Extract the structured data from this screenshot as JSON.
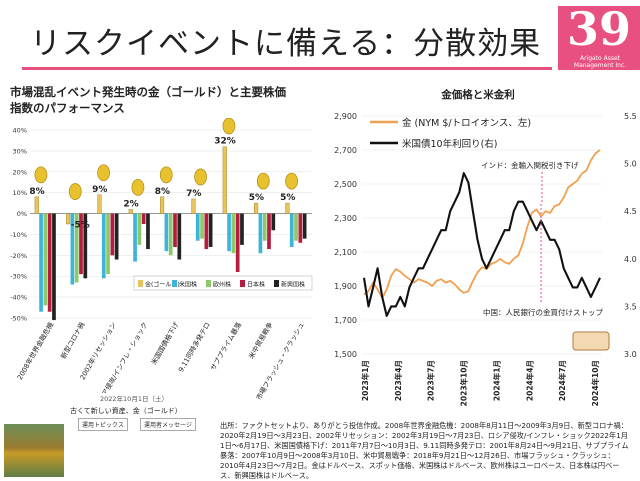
{
  "header": {
    "title": "リスクイベントに備える：分散効果",
    "page_number": "39",
    "publisher_line1": "Arigato Asset",
    "publisher_line2": "Management Inc."
  },
  "left_chart_title_line1": "市場混乱イベント発生時の金（ゴールド）と主要株価",
  "left_chart_title_line2": "指数のパフォーマンス",
  "right_chart_title": "金価格と米金利",
  "thumbnail": {
    "date": "2022年10月1日（土）",
    "title": "古くて新しい資産、金（ゴールド）",
    "button1": "運用トピックス",
    "button2": "運用者メッセージ"
  },
  "source_note": "出所：ファクトセットより、ありがとう投信作成。2008年世界金融危機：2008年8月11日〜2009年3月9日、新型コロナ禍：2020年2月19日〜3月23日、2002年リセッション：2002年3月19日〜7月23日、ロシア侵攻/インフレ・ショック2022年1月1日〜6月17日、米国国債格下げ：2011年7月7日〜10月3日、9.11同時多発テロ：2001年8月24日〜9月21日、サブプライム暴落：2007年10月9日〜2008年3月10日、米中貿易戦争：2018年9月21日〜12月26日、市場フラッシュ・クラッシュ：2010年4月23日〜7月2日。金はドルベース、スポット価格、米国株はドルベース、欧州株はユーロベース、日本株は円ベース、新興国株はドルベース。",
  "chart_data": [
    {
      "type": "bar",
      "title": "市場混乱イベント発生時の金（ゴールド）と主要株価指数のパフォーマンス",
      "categories": [
        "2008年世界金融危機",
        "新型コロナ禍",
        "2002年リセッション",
        "ロシア侵攻/インフレ・ショック",
        "米国国債格下げ",
        "9.11同時多発テロ",
        "サブプライム暴落",
        "米中貿易戦争",
        "市場フラッシュ・クラッシュ"
      ],
      "ylim": [
        -50,
        40
      ],
      "yticks": [
        "40%",
        "30%",
        "20%",
        "10%",
        "0%",
        "-10%",
        "-20%",
        "-30%",
        "-40%",
        "-50%"
      ],
      "series": [
        {
          "name": "金(ゴールド)",
          "color": "#e8c25a",
          "values": [
            8,
            -5,
            9,
            2,
            8,
            7,
            32,
            5,
            5
          ]
        },
        {
          "name": "米国株",
          "color": "#3fb4d8",
          "values": [
            -47,
            -34,
            -31,
            -23,
            -18,
            -13,
            -18,
            -19,
            -16
          ]
        },
        {
          "name": "欧州株",
          "color": "#8dc96b",
          "values": [
            -44,
            -33,
            -29,
            -15,
            -20,
            -12,
            -19,
            -13,
            -13
          ]
        },
        {
          "name": "日本株",
          "color": "#b51d3d",
          "values": [
            -47,
            -29,
            -20,
            -5,
            -16,
            -17,
            -28,
            -17,
            -14
          ]
        },
        {
          "name": "新興国株",
          "color": "#222222",
          "values": [
            -51,
            -31,
            -22,
            -17,
            -22,
            -16,
            -15,
            -8,
            -12
          ]
        }
      ],
      "data_labels": [
        "8%",
        "-5%",
        "9%",
        "2%",
        "8%",
        "7%",
        "32%",
        "5%",
        "5%"
      ]
    },
    {
      "type": "line",
      "title": "金価格と米金利",
      "x_ticks": [
        "2023年1月",
        "2023年4月",
        "2023年7月",
        "2023年10月",
        "2024年1月",
        "2024年4月",
        "2024年7月",
        "2024年10月"
      ],
      "ylim_left": [
        1500,
        2900
      ],
      "yticks_left": [
        "2,900",
        "2,700",
        "2,500",
        "2,300",
        "2,100",
        "1,900",
        "1,700",
        "1,500"
      ],
      "ylim_right": [
        3.0,
        5.5
      ],
      "yticks_right": [
        "5.5",
        "5.0",
        "4.5",
        "4.0",
        "3.5",
        "3.0"
      ],
      "series": [
        {
          "name": "金 (NYM $/トロイオンス、左)",
          "color": "#f0a050",
          "axis": "left",
          "values": [
            1850,
            1870,
            1920,
            1880,
            1830,
            1880,
            1960,
            2000,
            1985,
            1960,
            1940,
            1920,
            1940,
            1930,
            1920,
            1900,
            1930,
            1940,
            1920,
            1930,
            1910,
            1880,
            1860,
            1870,
            1930,
            1980,
            2010,
            2000,
            2030,
            2040,
            2060,
            2040,
            2030,
            2060,
            2080,
            2150,
            2250,
            2330,
            2350,
            2310,
            2340,
            2330,
            2370,
            2380,
            2420,
            2480,
            2500,
            2520,
            2560,
            2580,
            2640,
            2680,
            2700
          ]
        },
        {
          "name": "米国債10年利回り(右)",
          "color": "#111111",
          "axis": "right",
          "values": [
            3.8,
            3.5,
            3.7,
            3.9,
            3.6,
            3.4,
            3.5,
            3.5,
            3.6,
            3.5,
            3.7,
            3.8,
            3.9,
            3.9,
            4.0,
            4.1,
            4.2,
            4.3,
            4.3,
            4.5,
            4.6,
            4.7,
            4.9,
            4.8,
            4.5,
            4.2,
            4.0,
            3.9,
            4.0,
            4.1,
            4.2,
            4.3,
            4.3,
            4.5,
            4.6,
            4.6,
            4.5,
            4.4,
            4.3,
            4.4,
            4.3,
            4.2,
            4.2,
            4.1,
            3.9,
            3.8,
            3.7,
            3.7,
            3.8,
            3.7,
            3.6,
            3.7,
            3.8
          ]
        }
      ],
      "annotations": [
        "インド：金輸入関税引き下げ",
        "中国：人民銀行の金買付けストップ"
      ]
    }
  ]
}
